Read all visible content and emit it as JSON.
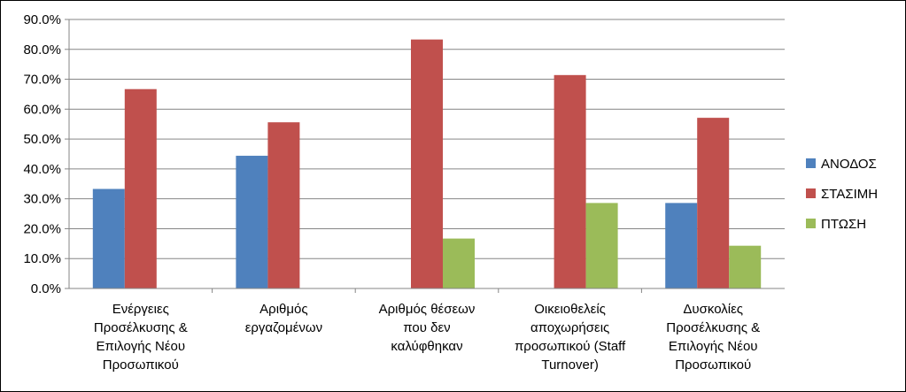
{
  "chart_data": {
    "type": "bar",
    "categories": [
      [
        "Ενέργειες",
        "Προσέλκυσης &",
        "Επιλογής Νέου",
        "Προσωπικού"
      ],
      [
        "Αριθμός",
        "εργαζομένων"
      ],
      [
        "Αριθμός θέσεων",
        "που δεν",
        "καλύφθηκαν"
      ],
      [
        "Οικειοθελείς",
        "αποχωρήσεις",
        "προσωπικού (Staff",
        "Turnover)"
      ],
      [
        "Δυσκολίες",
        "Προσέλκυσης &",
        "Επιλογής Νέου",
        "Προσωπικού"
      ]
    ],
    "series": [
      {
        "name": "ΑΝΟΔΟΣ",
        "color": "#4F81BD",
        "values": [
          33.3,
          44.4,
          0,
          0,
          28.6
        ]
      },
      {
        "name": "ΣΤΑΣΙΜΗ",
        "color": "#C0504D",
        "values": [
          66.7,
          55.6,
          83.3,
          71.4,
          57.1
        ]
      },
      {
        "name": "ΠΤΩΣΗ",
        "color": "#9BBB59",
        "values": [
          0,
          0,
          16.7,
          28.6,
          14.3
        ]
      }
    ],
    "yticks": [
      "0.0%",
      "10.0%",
      "20.0%",
      "30.0%",
      "40.0%",
      "50.0%",
      "60.0%",
      "70.0%",
      "80.0%",
      "90.0%"
    ],
    "ylim": [
      0,
      90
    ],
    "grid": true,
    "legend_position": "right",
    "title": "",
    "xlabel": "",
    "ylabel": ""
  }
}
